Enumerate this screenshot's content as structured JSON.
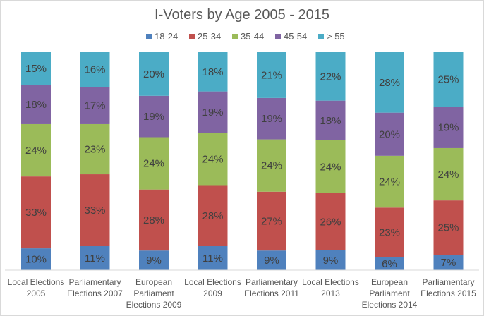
{
  "chart_data": {
    "type": "bar",
    "stacked": true,
    "percent_stacked": true,
    "title": "I-Voters by Age 2005 - 2015",
    "legend_position": "top",
    "grid": false,
    "categories": [
      [
        "Local Elections",
        "2005"
      ],
      [
        "Parliamentary",
        "Elections 2007"
      ],
      [
        "European",
        "Parliament",
        "Elections 2009"
      ],
      [
        "Local Elections",
        "2009"
      ],
      [
        "Parliamentary",
        "Elections 2011"
      ],
      [
        "Local Elections",
        "2013"
      ],
      [
        "European",
        "Parliament",
        "Elections 2014"
      ],
      [
        "Parliamentary",
        "Elections 2015"
      ]
    ],
    "series": [
      {
        "name": "18-24",
        "color": "#4f81bd",
        "values": [
          10,
          11,
          9,
          11,
          9,
          9,
          6,
          7
        ]
      },
      {
        "name": "25-34",
        "color": "#c0504d",
        "values": [
          33,
          33,
          28,
          28,
          27,
          26,
          23,
          25
        ]
      },
      {
        "name": "35-44",
        "color": "#9bbb59",
        "values": [
          24,
          23,
          24,
          24,
          24,
          24,
          24,
          24
        ]
      },
      {
        "name": "45-54",
        "color": "#8064a2",
        "values": [
          18,
          17,
          19,
          19,
          19,
          18,
          20,
          19
        ]
      },
      {
        "name": "> 55",
        "color": "#4bacc6",
        "values": [
          15,
          16,
          20,
          18,
          21,
          22,
          28,
          25
        ]
      }
    ],
    "value_suffix": "%"
  }
}
